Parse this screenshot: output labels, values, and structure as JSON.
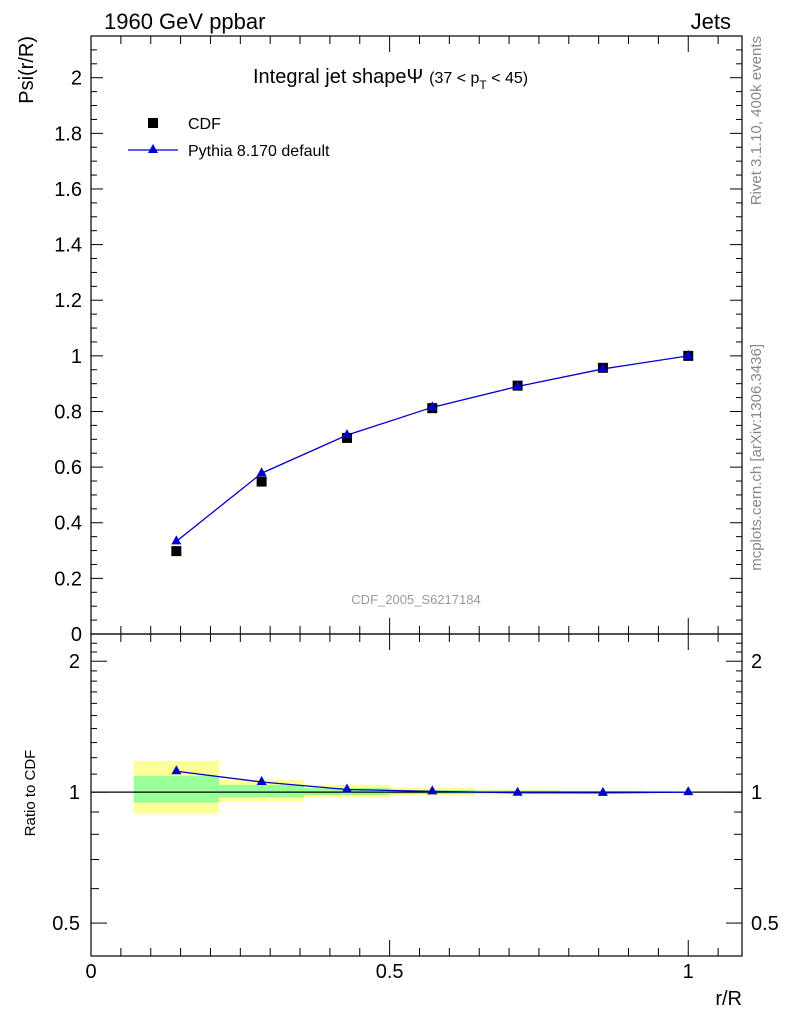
{
  "header": {
    "left": "1960 GeV ppbar",
    "right": "Jets"
  },
  "side_labels": {
    "rivet": "Rivet 3.1.10,  400k events",
    "mcplots": "mcplots.cern.ch [arXiv:1306.3436]"
  },
  "chart_data": [
    {
      "type": "scatter",
      "title_main": "Integral jet shapeΨ",
      "title_sub": "(37 < p",
      "title_sub_index": "T",
      "title_sub_end": " < 45)",
      "ylabel": "Psi(r/R)",
      "xlabel": "r/R",
      "watermark": "CDF_2005_S6217184",
      "xlim": [
        0,
        1.09
      ],
      "ylim": [
        0,
        2.15
      ],
      "yticks": [
        0,
        0.2,
        0.4,
        0.6,
        0.8,
        1,
        1.2,
        1.4,
        1.6,
        1.8,
        2
      ],
      "ytick_labels": [
        "0",
        "0.2",
        "0.4",
        "0.6",
        "0.8",
        "1",
        "1.2",
        "1.4",
        "1.6",
        "1.8",
        "2"
      ],
      "legend": [
        {
          "name": "CDF",
          "marker": "square",
          "color": "#000000"
        },
        {
          "name": "Pythia 8.170 default",
          "marker": "triangle",
          "color": "#0000cc"
        }
      ],
      "series": [
        {
          "name": "CDF",
          "x": [
            0.1429,
            0.2857,
            0.4286,
            0.5714,
            0.7143,
            0.8571,
            1.0
          ],
          "values": [
            0.298,
            0.548,
            0.705,
            0.812,
            0.893,
            0.957,
            1.0
          ]
        },
        {
          "name": "Pythia 8.170 default",
          "x": [
            0.1429,
            0.2857,
            0.4286,
            0.5714,
            0.7143,
            0.8571,
            1.0
          ],
          "values": [
            0.333,
            0.578,
            0.715,
            0.815,
            0.89,
            0.953,
            1.0
          ]
        }
      ]
    },
    {
      "type": "ratio",
      "ylabel": "Ratio to CDF",
      "xlabel": "r/R",
      "ylim": [
        0.42,
        2.31
      ],
      "yscale": "log",
      "xticks": [
        0,
        0.5,
        1
      ],
      "xtick_labels": [
        "0",
        "0.5",
        "1"
      ],
      "yticks": [
        0.5,
        1,
        2
      ],
      "ytick_labels": [
        "0.5",
        "1",
        "2"
      ],
      "bands": [
        {
          "xlo": 0.0714,
          "xhi": 0.2143,
          "inner": [
            0.946,
            1.09
          ],
          "outer": [
            0.892,
            1.18
          ]
        },
        {
          "xlo": 0.2143,
          "xhi": 0.3571,
          "inner": [
            0.972,
            1.04
          ],
          "outer": [
            0.95,
            1.068
          ]
        },
        {
          "xlo": 0.3571,
          "xhi": 0.5,
          "inner": [
            0.985,
            1.022
          ],
          "outer": [
            0.972,
            1.04
          ]
        },
        {
          "xlo": 0.5,
          "xhi": 0.6429,
          "inner": [
            0.99,
            1.012
          ],
          "outer": [
            0.982,
            1.024
          ]
        },
        {
          "xlo": 0.6429,
          "xhi": 0.7857,
          "inner": [
            0.994,
            1.008
          ],
          "outer": [
            0.988,
            1.014
          ]
        },
        {
          "xlo": 0.7857,
          "xhi": 0.9286,
          "inner": [
            0.997,
            1.004
          ],
          "outer": [
            0.994,
            1.007
          ]
        }
      ],
      "series": [
        {
          "name": "Pythia 8.170 default",
          "x": [
            0.1429,
            0.2857,
            0.4286,
            0.5714,
            0.7143,
            0.8571,
            1.0
          ],
          "values": [
            1.117,
            1.055,
            1.014,
            1.004,
            0.997,
            0.996,
            1.0
          ]
        }
      ]
    }
  ]
}
